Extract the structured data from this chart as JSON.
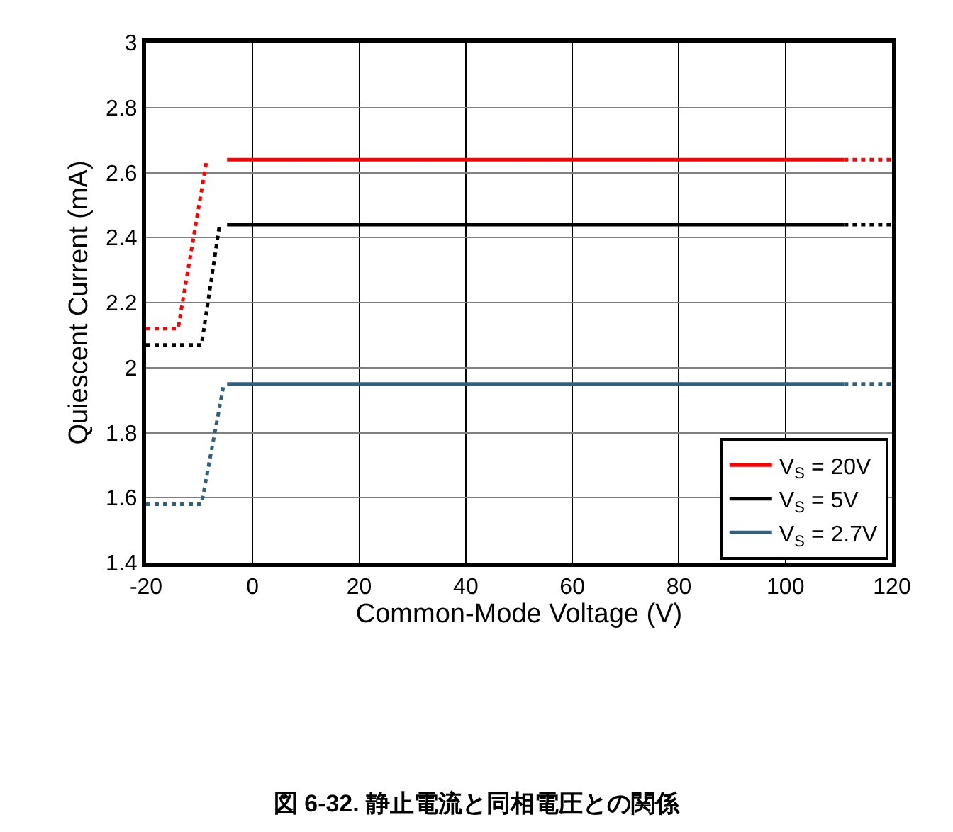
{
  "chart_data": {
    "type": "line",
    "title": "図 6-32. 静止電流と同相電圧との関係",
    "xlabel": "Common-Mode Voltage (V)",
    "ylabel": "Quiescent Current (mA)",
    "xlim": [
      -20,
      120
    ],
    "xticks": [
      -20,
      0,
      20,
      40,
      60,
      80,
      100,
      120
    ],
    "ylim": [
      1.4,
      3
    ],
    "yticks": [
      1.4,
      1.6,
      1.8,
      2,
      2.2,
      2.4,
      2.6,
      2.8,
      3
    ],
    "grid": true,
    "legend": "bottom right",
    "series": [
      {
        "name": "V$_{S}$ = 20V",
        "color": "#ff0000",
        "line_style": "solid",
        "x": [
          -4.8,
          111
        ],
        "values": [
          2.64,
          2.64
        ]
      },
      {
        "name": "V$_{S}$ = 5V",
        "color": "#000000",
        "line_style": "solid",
        "x": [
          -4.8,
          111
        ],
        "values": [
          2.44,
          2.44
        ]
      },
      {
        "name": "V$_{S}$ = 2.7V",
        "color": "#306080",
        "line_style": "solid",
        "x": [
          -4.8,
          111
        ],
        "values": [
          1.95,
          1.95
        ]
      },
      {
        "color": "#ff0000",
        "line_style": "dotted",
        "x": [
          -20,
          -14,
          -8.6
        ],
        "values": [
          2.12,
          2.12,
          2.64
        ]
      },
      {
        "color": "#ff0000",
        "line_style": "dotted",
        "x": [
          111,
          120
        ],
        "values": [
          2.64,
          2.64
        ]
      },
      {
        "color": "#000000",
        "line_style": "dotted",
        "x": [
          -20,
          -9.6,
          -6.2
        ],
        "values": [
          2.07,
          2.07,
          2.44
        ]
      },
      {
        "color": "#000000",
        "line_style": "dotted",
        "x": [
          111,
          120
        ],
        "values": [
          2.44,
          2.44
        ]
      },
      {
        "color": "#306080",
        "line_style": "dotted",
        "x": [
          -20,
          -9.6,
          -5.4
        ],
        "values": [
          1.58,
          1.58,
          1.95
        ]
      },
      {
        "color": "#306080",
        "line_style": "dotted",
        "x": [
          111,
          120
        ],
        "values": [
          1.95,
          1.95
        ]
      }
    ]
  }
}
